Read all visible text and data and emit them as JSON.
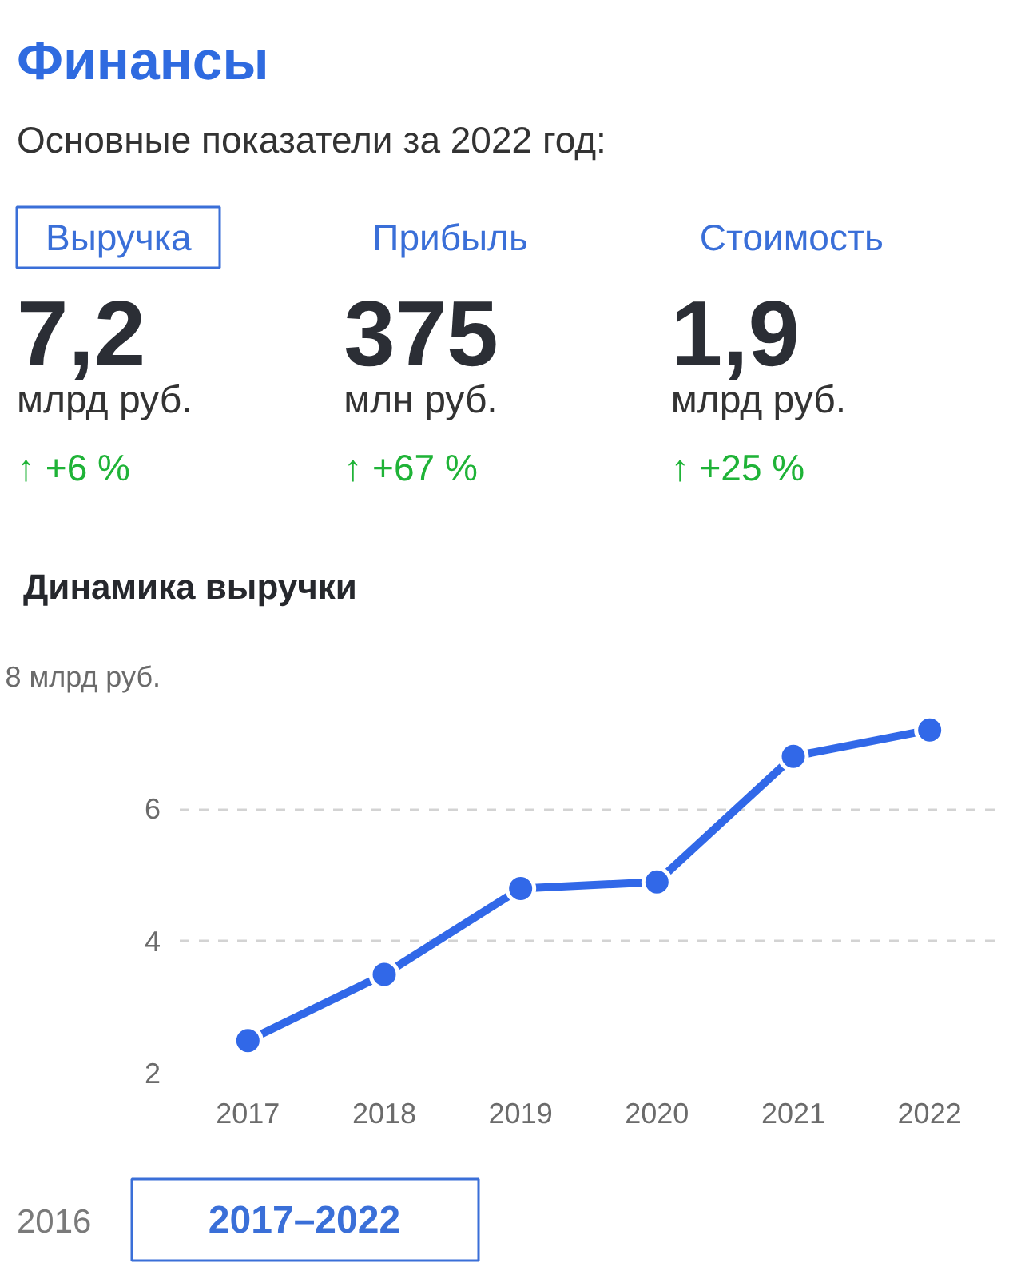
{
  "chart_data": [
    {
      "type": "other",
      "title": "Финансы",
      "subtitle": "Основные показатели за 2022 год:",
      "categories": [
        "Выручка",
        "Прибыль",
        "Стоимость"
      ],
      "annotations": [
        "7,2",
        "375",
        "1,9",
        "млрд руб.",
        "млн руб.",
        "млрд руб.",
        "↑ +6 %",
        "↑ +67 %",
        "↑ +25 %"
      ]
    },
    {
      "type": "line",
      "title": "Динамика выручки",
      "categories": [
        "2017",
        "2018",
        "2019",
        "2020",
        "2021",
        "2022"
      ],
      "series": [
        {
          "color": "#3168e8",
          "values": [
            2.5,
            3.5,
            4.8,
            4.9,
            6.8,
            7.2
          ]
        }
      ],
      "ylim": [
        2,
        8
      ],
      "yticks": [
        2,
        4,
        6,
        {
          "value": 8,
          "label": "8 млрд руб."
        }
      ],
      "grid": "y",
      "marker": "circle",
      "line_style": "solid",
      "annotations": [
        "2016",
        "2017–2022"
      ]
    }
  ]
}
